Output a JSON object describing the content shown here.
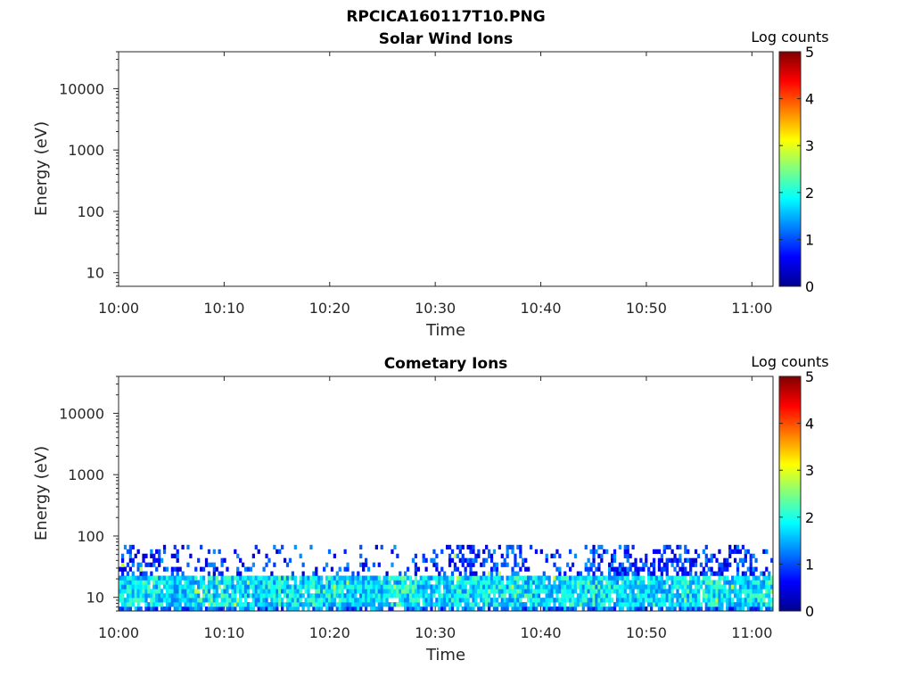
{
  "figure": {
    "filename": "RPCICA160117T10.PNG"
  },
  "chart_data": [
    {
      "type": "heatmap",
      "title": "Solar Wind Ions",
      "xlabel": "Time",
      "ylabel": "Energy (eV)",
      "x_range": [
        "10:00",
        "11:02"
      ],
      "y_scale": "log",
      "y_range_eV": [
        6,
        40000
      ],
      "x_tick_labels": [
        "10:00",
        "10:10",
        "10:20",
        "10:30",
        "10:40",
        "10:50",
        "11:00"
      ],
      "y_tick_labels": [
        "10",
        "100",
        "1000",
        "10000"
      ],
      "y_ticks_eV": [
        10,
        100,
        1000,
        10000
      ],
      "colorbar": {
        "label": "Log counts",
        "min": 0,
        "max": 5,
        "ticks": [
          "0",
          "1",
          "2",
          "3",
          "4",
          "5"
        ],
        "colormap": "jet"
      },
      "data_present": false
    },
    {
      "type": "heatmap",
      "title": "Cometary Ions",
      "xlabel": "Time",
      "ylabel": "Energy (eV)",
      "x_range": [
        "10:00",
        "11:02"
      ],
      "y_scale": "log",
      "y_range_eV": [
        6,
        40000
      ],
      "x_tick_labels": [
        "10:00",
        "10:10",
        "10:20",
        "10:30",
        "10:40",
        "10:50",
        "11:00"
      ],
      "y_tick_labels": [
        "10",
        "100",
        "1000",
        "10000"
      ],
      "y_ticks_eV": [
        10,
        100,
        1000,
        10000
      ],
      "colorbar": {
        "label": "Log counts",
        "min": 0,
        "max": 5,
        "ticks": [
          "0",
          "1",
          "2",
          "3",
          "4",
          "5"
        ],
        "colormap": "jet"
      },
      "data_present": true,
      "description_of_values": {
        "core_band_eV": [
          7,
          22
        ],
        "core_log_counts": [
          1.2,
          2.6
        ],
        "sparse_extension_max_eV": 80,
        "peak_log_counts": 2.8
      }
    }
  ]
}
